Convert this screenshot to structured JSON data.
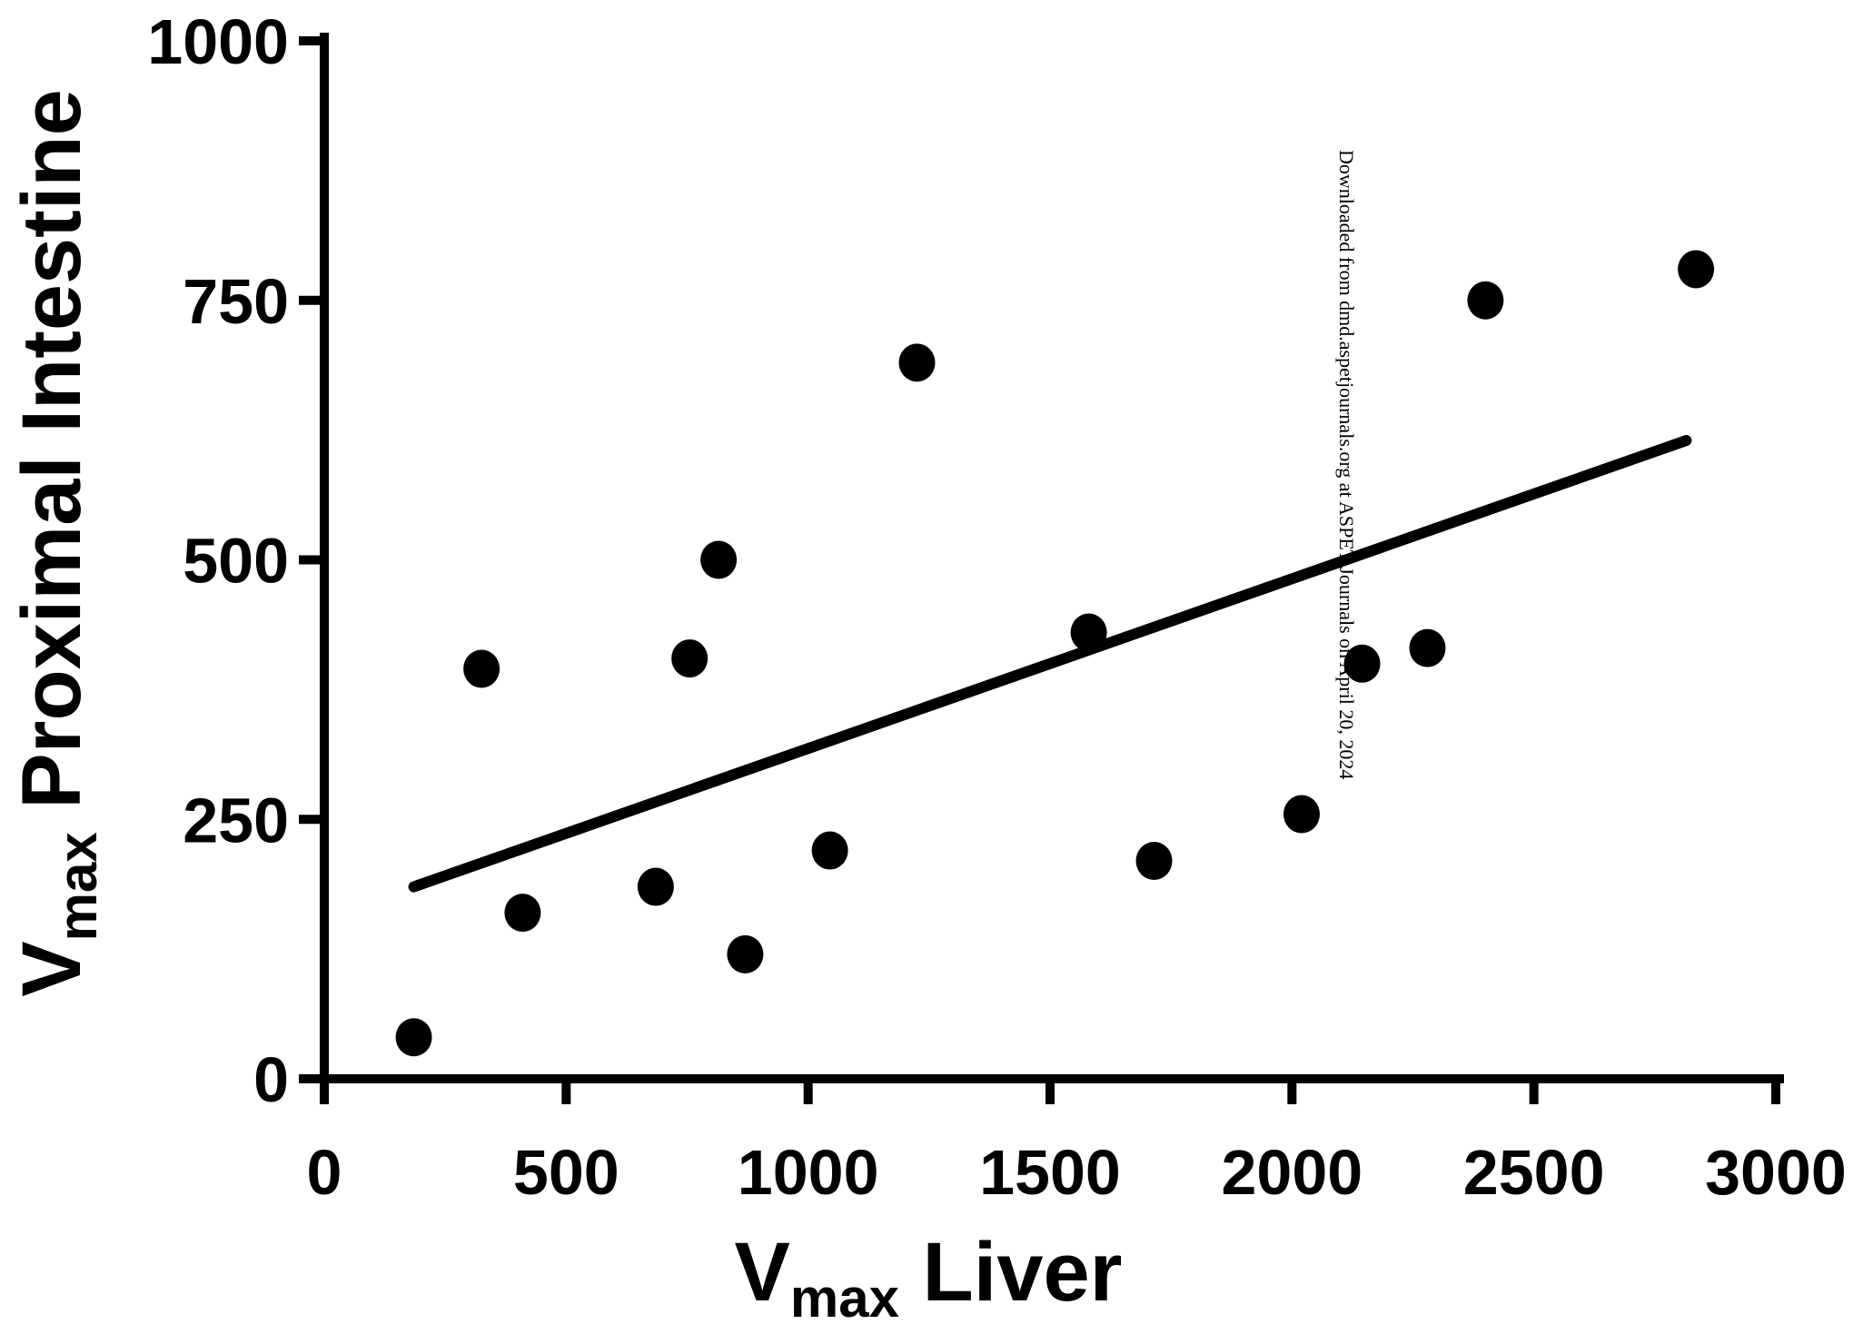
{
  "chart_data": {
    "type": "scatter",
    "title": "",
    "xlabel": {
      "main": "V",
      "sub": "max",
      "rest": " Liver"
    },
    "ylabel": {
      "main": "V",
      "sub": "max",
      "rest": " Proximal Intestine"
    },
    "xlim": [
      0,
      3000
    ],
    "ylim": [
      0,
      1000
    ],
    "x_ticks": [
      0,
      500,
      1000,
      1500,
      2000,
      2500,
      3000
    ],
    "y_ticks": [
      0,
      250,
      500,
      750,
      1000
    ],
    "x_tick_labels": [
      "0",
      "500",
      "1000",
      "1500",
      "2000",
      "2500",
      "3000"
    ],
    "y_tick_labels": [
      "0",
      "250",
      "500",
      "750",
      "1000"
    ],
    "grid": false,
    "legend": "none",
    "series": [
      {
        "points": [
          {
            "x": 185,
            "y": 40
          },
          {
            "x": 325,
            "y": 395
          },
          {
            "x": 410,
            "y": 160
          },
          {
            "x": 685,
            "y": 185
          },
          {
            "x": 755,
            "y": 405
          },
          {
            "x": 815,
            "y": 500
          },
          {
            "x": 870,
            "y": 120
          },
          {
            "x": 1045,
            "y": 220
          },
          {
            "x": 1225,
            "y": 690
          },
          {
            "x": 1580,
            "y": 430
          },
          {
            "x": 1715,
            "y": 210
          },
          {
            "x": 2020,
            "y": 255
          },
          {
            "x": 2145,
            "y": 400
          },
          {
            "x": 2280,
            "y": 415
          },
          {
            "x": 2400,
            "y": 750
          },
          {
            "x": 2835,
            "y": 780
          }
        ],
        "color": "#000000"
      }
    ],
    "trendline": {
      "x": [
        185,
        2815
      ],
      "y": [
        185,
        615
      ],
      "color": "#000000"
    },
    "watermark": "Downloaded from dmd.aspetjournals.org at ASPET Journals on April 20, 2024"
  }
}
